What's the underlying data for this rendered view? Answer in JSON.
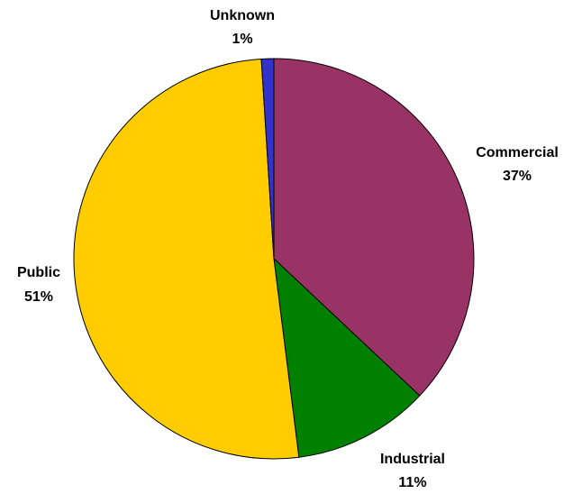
{
  "chart_data": {
    "type": "pie",
    "start_angle_deg": 0,
    "direction": "clockwise",
    "slices": [
      {
        "label": "Commercial",
        "percent_label": "37%",
        "value": 37,
        "color": "#993366"
      },
      {
        "label": "Industrial",
        "percent_label": "11%",
        "value": 11,
        "color": "#008000"
      },
      {
        "label": "Public",
        "percent_label": "51%",
        "value": 51,
        "color": "#FFCC00"
      },
      {
        "label": "Unknown",
        "percent_label": "1%",
        "value": 1,
        "color": "#3333CC"
      }
    ]
  }
}
